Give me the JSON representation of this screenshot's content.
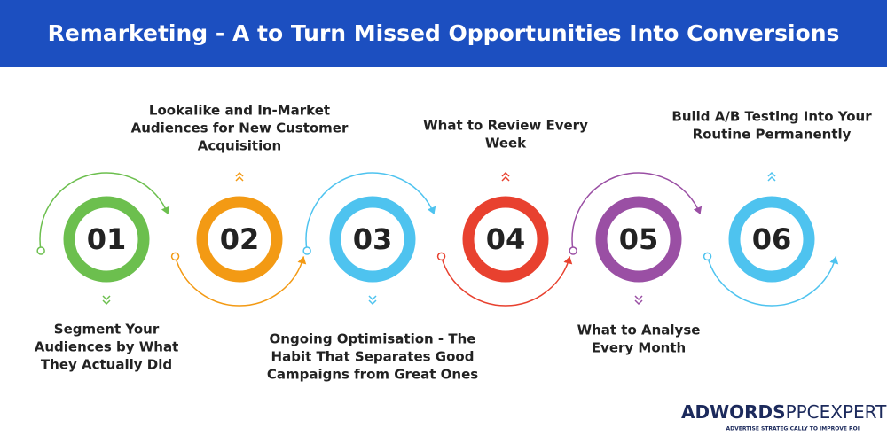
{
  "header": {
    "title": "Remarketing - A to Turn Missed Opportunities Into Conversions"
  },
  "steps": [
    {
      "number": "01",
      "color": "#6cbf4e",
      "label_lines": [
        "Segment Your",
        "Audiences by What",
        "They Actually Did"
      ]
    },
    {
      "number": "02",
      "color": "#f39a14",
      "label_lines": [
        "Lookalike and In-Market",
        "Audiences for New Customer",
        "Acquisition"
      ]
    },
    {
      "number": "03",
      "color": "#4ec3ef",
      "label_lines": [
        "Ongoing Optimisation - The",
        "Habit That Separates Good",
        "Campaigns from Great Ones"
      ]
    },
    {
      "number": "04",
      "color": "#e8412f",
      "label_lines": [
        "What to Review Every",
        "Week"
      ]
    },
    {
      "number": "05",
      "color": "#9a4fa4",
      "label_lines": [
        "What to Analyse",
        "Every Month"
      ]
    },
    {
      "number": "06",
      "color": "#4ec3ef",
      "label_lines": [
        "Build A/B Testing Into Your",
        "Routine Permanently"
      ]
    }
  ],
  "logo": {
    "brand": "ADWORDS",
    "suffix": "PPCEXPERT",
    "tagline": "ADVERTISE STRATEGICALLY TO IMPROVE ROI"
  }
}
